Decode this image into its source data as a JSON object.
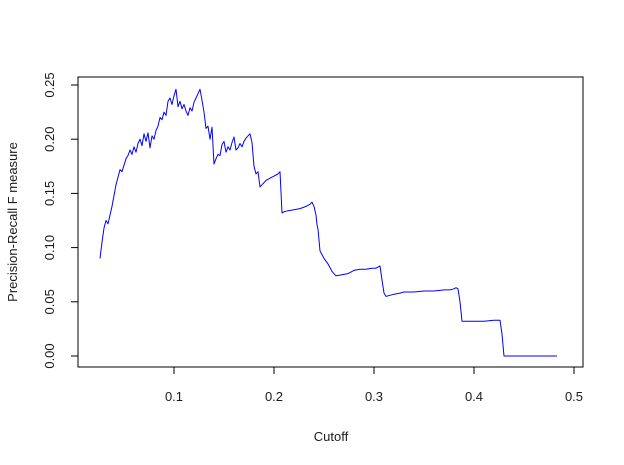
{
  "chart_data": {
    "type": "line",
    "title": "",
    "xlabel": "Cutoff",
    "ylabel": "Precision-Recall F measure",
    "xlim": [
      0.0,
      0.5
    ],
    "ylim": [
      0.0,
      0.25
    ],
    "x_ticks": [
      0.1,
      0.2,
      0.3,
      0.4,
      0.5
    ],
    "x_tick_labels": [
      "0.1",
      "0.2",
      "0.3",
      "0.4",
      "0.5"
    ],
    "y_ticks": [
      0.0,
      0.05,
      0.1,
      0.15,
      0.2,
      0.25
    ],
    "y_tick_labels": [
      "0.00",
      "0.05",
      "0.10",
      "0.15",
      "0.20",
      "0.25"
    ],
    "grid": false,
    "legend": "none",
    "series": [
      {
        "color": "#0000ff",
        "x": [
          0.026,
          0.028,
          0.03,
          0.032,
          0.034,
          0.036,
          0.038,
          0.04,
          0.042,
          0.044,
          0.046,
          0.048,
          0.05,
          0.052,
          0.054,
          0.056,
          0.058,
          0.06,
          0.062,
          0.064,
          0.066,
          0.068,
          0.07,
          0.072,
          0.074,
          0.076,
          0.078,
          0.08,
          0.082,
          0.084,
          0.086,
          0.088,
          0.09,
          0.092,
          0.094,
          0.096,
          0.098,
          0.1,
          0.102,
          0.104,
          0.106,
          0.108,
          0.11,
          0.112,
          0.114,
          0.116,
          0.118,
          0.12,
          0.122,
          0.124,
          0.126,
          0.128,
          0.13,
          0.132,
          0.134,
          0.136,
          0.138,
          0.14,
          0.142,
          0.144,
          0.146,
          0.148,
          0.15,
          0.152,
          0.154,
          0.156,
          0.158,
          0.16,
          0.162,
          0.164,
          0.166,
          0.168,
          0.17,
          0.172,
          0.174,
          0.176,
          0.178,
          0.18,
          0.182,
          0.184,
          0.186,
          0.188,
          0.19,
          0.192,
          0.194,
          0.196,
          0.198,
          0.2,
          0.202,
          0.204,
          0.206,
          0.208,
          0.21,
          0.214,
          0.22,
          0.226,
          0.232,
          0.236,
          0.238,
          0.24,
          0.242,
          0.243,
          0.244,
          0.246,
          0.25,
          0.254,
          0.258,
          0.262,
          0.268,
          0.274,
          0.28,
          0.286,
          0.292,
          0.298,
          0.302,
          0.304,
          0.306,
          0.308,
          0.31,
          0.312,
          0.316,
          0.32,
          0.326,
          0.33,
          0.34,
          0.35,
          0.36,
          0.37,
          0.376,
          0.38,
          0.382,
          0.384,
          0.386,
          0.388,
          0.392,
          0.4,
          0.41,
          0.42,
          0.426,
          0.428,
          0.43,
          0.44,
          0.46,
          0.483
        ],
        "y": [
          0.09,
          0.105,
          0.118,
          0.125,
          0.122,
          0.13,
          0.138,
          0.148,
          0.158,
          0.165,
          0.172,
          0.17,
          0.176,
          0.182,
          0.185,
          0.19,
          0.186,
          0.193,
          0.188,
          0.196,
          0.2,
          0.194,
          0.205,
          0.198,
          0.206,
          0.192,
          0.203,
          0.2,
          0.208,
          0.212,
          0.22,
          0.218,
          0.225,
          0.222,
          0.235,
          0.238,
          0.232,
          0.24,
          0.246,
          0.23,
          0.235,
          0.228,
          0.232,
          0.226,
          0.222,
          0.229,
          0.226,
          0.234,
          0.238,
          0.242,
          0.246,
          0.236,
          0.225,
          0.21,
          0.212,
          0.2,
          0.211,
          0.177,
          0.182,
          0.186,
          0.185,
          0.195,
          0.198,
          0.188,
          0.193,
          0.19,
          0.197,
          0.202,
          0.19,
          0.192,
          0.196,
          0.193,
          0.198,
          0.201,
          0.203,
          0.205,
          0.197,
          0.175,
          0.168,
          0.17,
          0.156,
          0.158,
          0.16,
          0.162,
          0.163,
          0.164,
          0.165,
          0.166,
          0.167,
          0.168,
          0.17,
          0.132,
          0.133,
          0.134,
          0.135,
          0.136,
          0.138,
          0.14,
          0.142,
          0.138,
          0.13,
          0.121,
          0.117,
          0.097,
          0.09,
          0.085,
          0.078,
          0.074,
          0.075,
          0.076,
          0.079,
          0.08,
          0.08,
          0.081,
          0.081,
          0.082,
          0.083,
          0.07,
          0.058,
          0.055,
          0.056,
          0.057,
          0.058,
          0.059,
          0.059,
          0.06,
          0.06,
          0.061,
          0.061,
          0.062,
          0.063,
          0.062,
          0.05,
          0.032,
          0.032,
          0.032,
          0.032,
          0.033,
          0.033,
          0.02,
          0.0,
          0.0,
          0.0,
          0.0
        ]
      }
    ]
  }
}
